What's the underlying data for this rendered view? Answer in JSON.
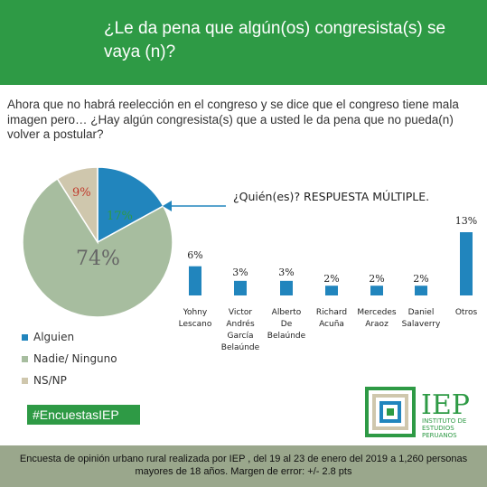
{
  "header": {
    "title": "¿Le da pena que algún(os) congresista(s) se vaya (n)?"
  },
  "question": "Ahora que no habrá reelección en el congreso y se dice que el congreso tiene mala imagen pero… ¿Hay algún congresista(s) que a usted le da pena que no pueda(n) volver a postular?",
  "colors": {
    "green": "#2e9a45",
    "blue": "#2185bd",
    "sage": "#a7bd9f",
    "beige": "#cfc7ad",
    "footer": "#9aa78c"
  },
  "hashtag": "#EncuestasIEP",
  "logo": {
    "big": "IEP",
    "line1": "INSTITUTO DE",
    "line2": "ESTUDIOS",
    "line3": "PERUANOS"
  },
  "footer": {
    "line1": "Encuesta de opinión urbano rural realizada por IEP , del 19 al 23 de enero del 2019 a 1,260 personas",
    "line2": "mayores de 18 años. Margen de error: +/- 2.8 pts"
  },
  "chart_data": [
    {
      "type": "pie",
      "labels": [
        "Alguien",
        "Nadie/ Ninguno",
        "NS/NP"
      ],
      "values": [
        17,
        74,
        9
      ],
      "value_labels": [
        "17%",
        "74%",
        "9%"
      ],
      "colors": [
        "#2185bd",
        "#a7bd9f",
        "#cfc7ad"
      ],
      "legend": "bottom-left"
    },
    {
      "type": "bar",
      "title": "¿Quién(es)? RESPUESTA MÚLTIPLE.",
      "categories": [
        [
          "Yohny",
          "Lescano"
        ],
        [
          "Victor",
          "Andrés",
          "García",
          "Belaúnde"
        ],
        [
          "Alberto",
          "De",
          "Belaúnde"
        ],
        [
          "Richard",
          "Acuña"
        ],
        [
          "Mercedes",
          "Araoz"
        ],
        [
          "Daniel",
          "Salaverry"
        ],
        [
          "Otros"
        ]
      ],
      "values": [
        6,
        3,
        3,
        2,
        2,
        2,
        13
      ],
      "value_labels": [
        "6%",
        "3%",
        "3%",
        "2%",
        "2%",
        "2%",
        "13%"
      ],
      "color": "#2185bd"
    }
  ]
}
